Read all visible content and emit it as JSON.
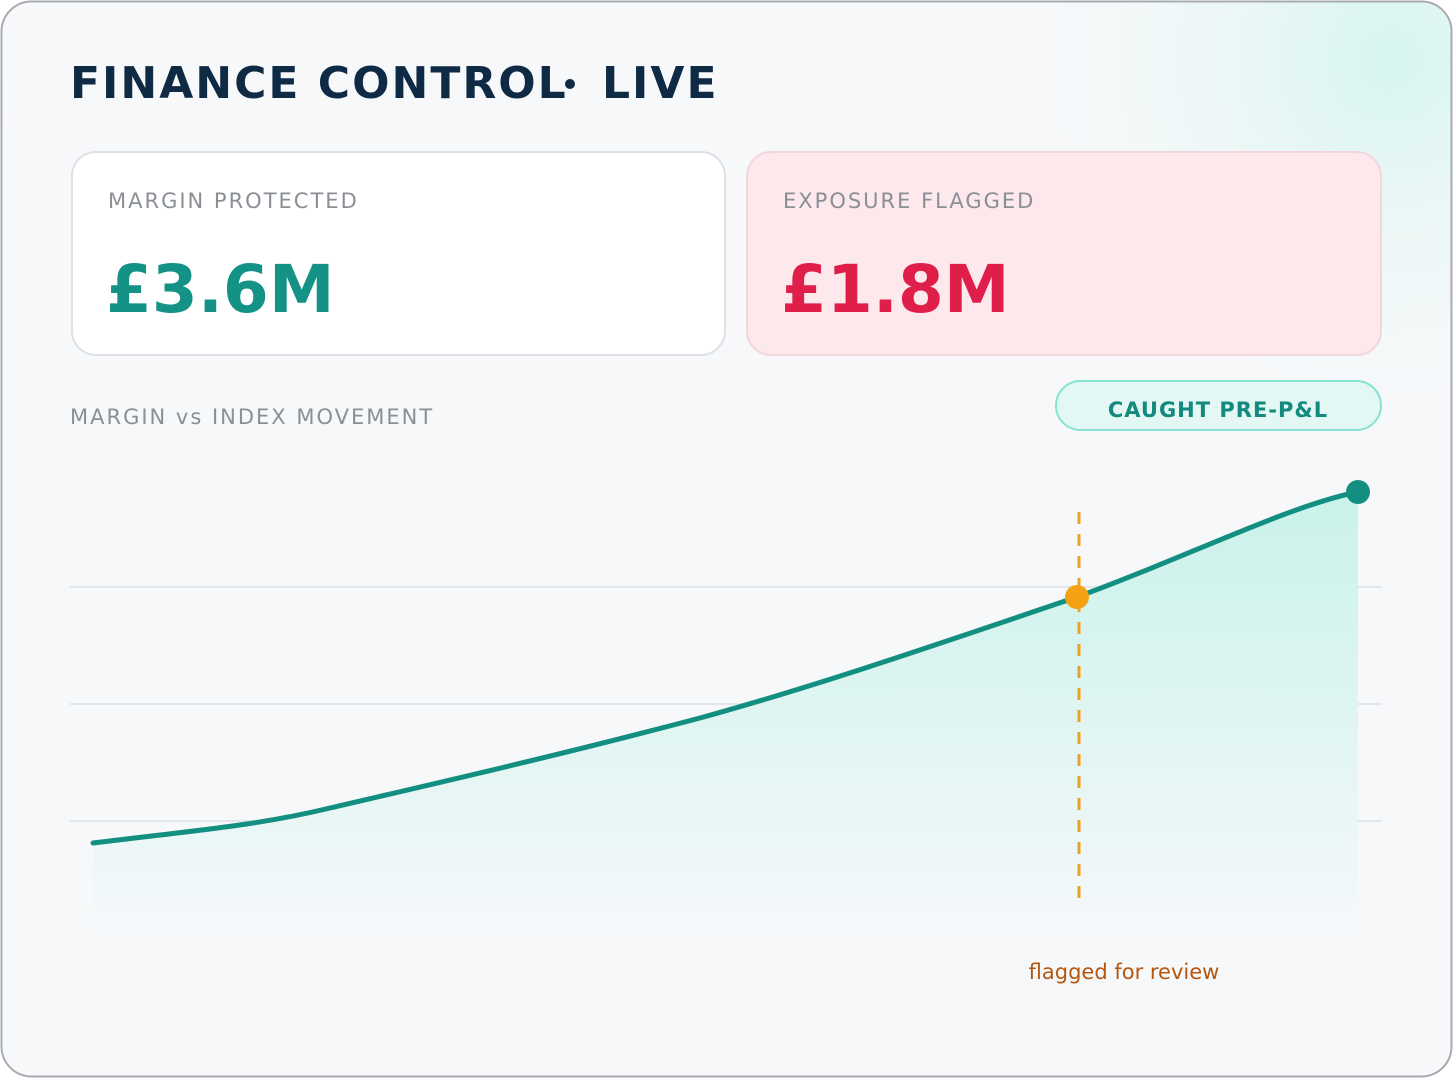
{
  "header": {
    "title": "FINANCE CONTROL",
    "status": "LIVE"
  },
  "kpis": [
    {
      "label": "MARGIN PROTECTED",
      "value": "£3.6M"
    },
    {
      "label": "EXPOSURE FLAGGED",
      "value": "£1.8M"
    }
  ],
  "chart": {
    "title": "MARGIN vs INDEX MOVEMENT",
    "badge": "CAUGHT PRE-P&L",
    "annotation": "flagged for review"
  }
}
